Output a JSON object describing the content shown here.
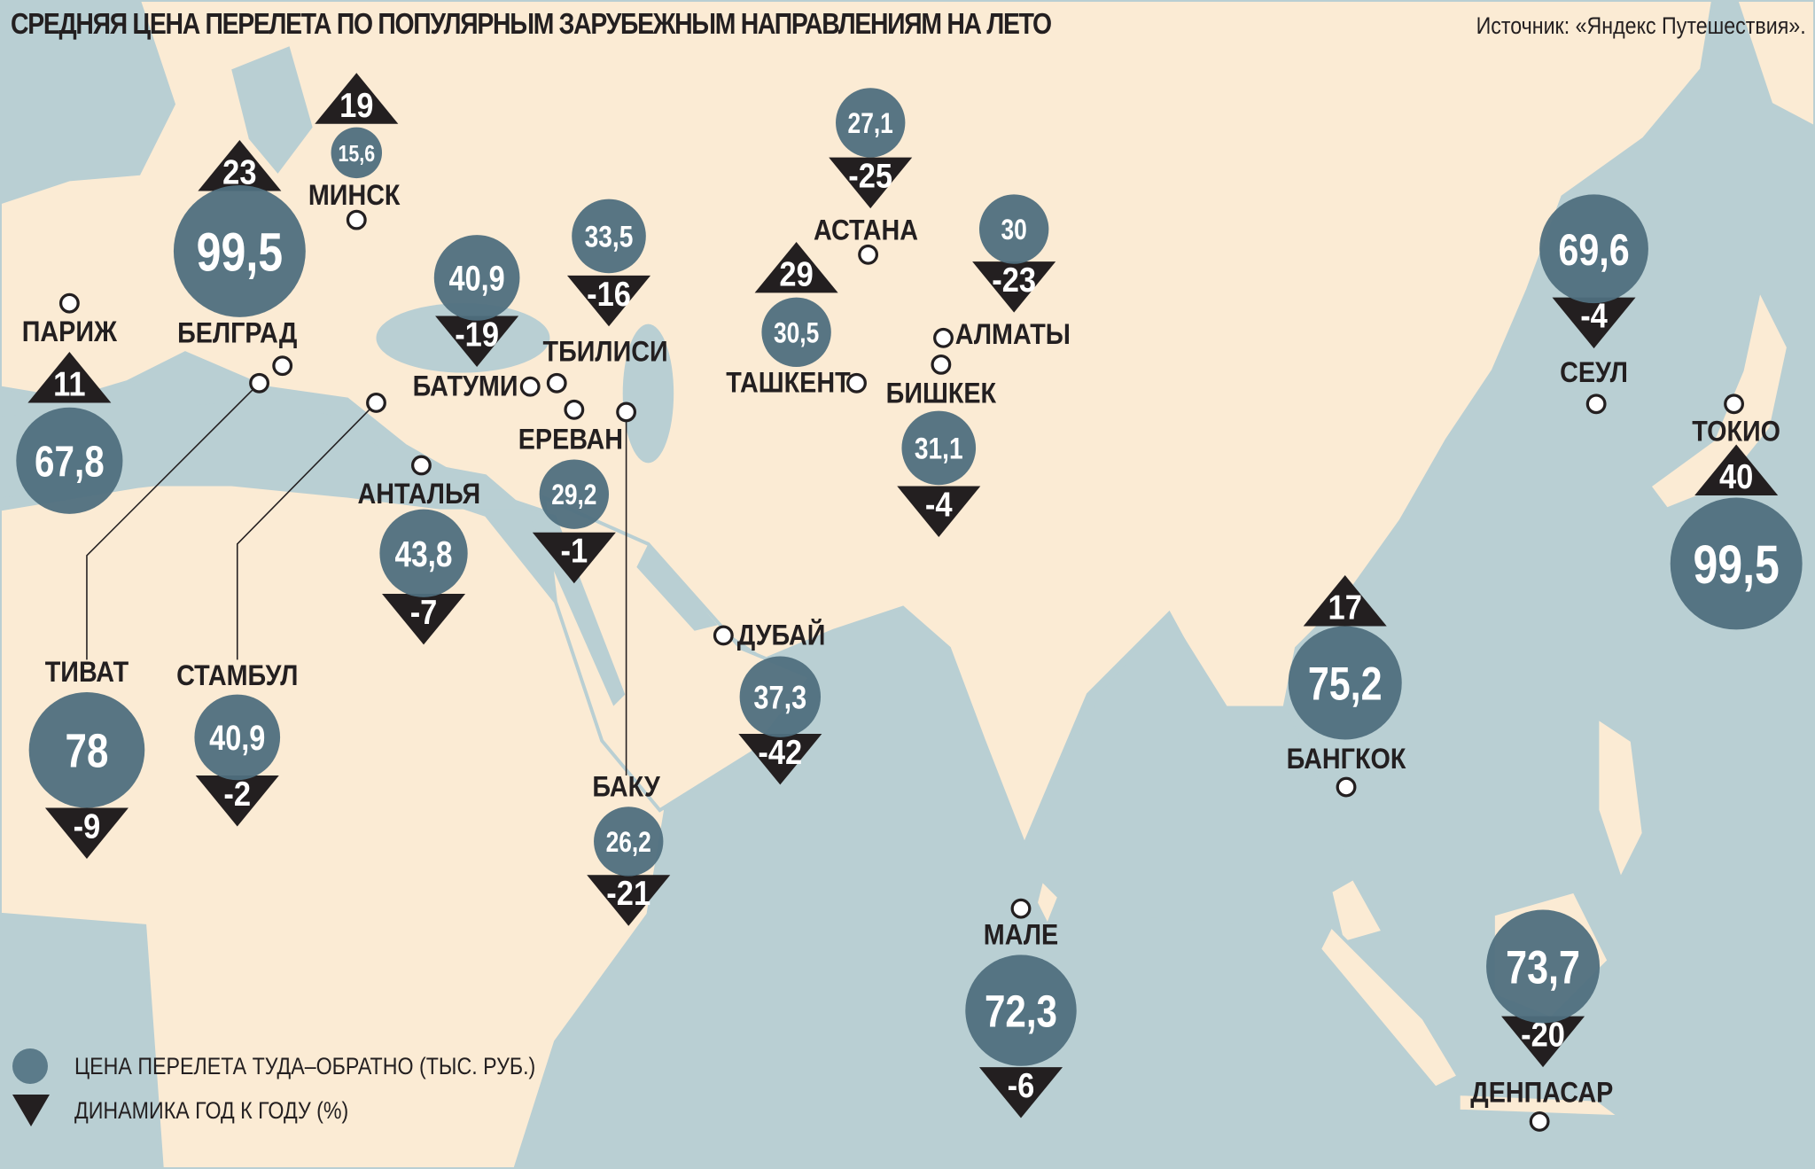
{
  "header": {
    "title": "СРЕДНЯЯ ЦЕНА ПЕРЕЛЕТА ПО ПОПУЛЯРНЫМ ЗАРУБЕЖНЫМ НАПРАВЛЕНИЯМ НА ЛЕТО",
    "source": "Источник: «Яндекс Путешествия»."
  },
  "legend": {
    "price": "ЦЕНА ПЕРЕЛЕТА ТУДА–ОБРАТНО  (ТЫС. РУБ.)",
    "change": "ДИНАМИКА ГОД К ГОДУ (%)"
  },
  "colors": {
    "sea": "#b9cfd3",
    "land": "#fbebd4",
    "border": "#b9cfd3",
    "bubble": "#4f6f7e",
    "triangle": "#231f20"
  },
  "cities": [
    {
      "name": "ПАРИЖ",
      "price": "67,8",
      "change": "11",
      "trend": "up"
    },
    {
      "name": "БЕЛГРАД",
      "price": "99,5",
      "change": "23",
      "trend": "up"
    },
    {
      "name": "МИНСК",
      "price": "15,6",
      "change": "19",
      "trend": "up"
    },
    {
      "name": "ТИВАТ",
      "price": "78",
      "change": "-9",
      "trend": "down"
    },
    {
      "name": "СТАМБУЛ",
      "price": "40,9",
      "change": "-2",
      "trend": "down"
    },
    {
      "name": "БАТУМИ",
      "price": "40,9",
      "change": "-19",
      "trend": "down"
    },
    {
      "name": "ТБИЛИСИ",
      "price": "33,5",
      "change": "-16",
      "trend": "down"
    },
    {
      "name": "ЕРЕВАН",
      "price": "29,2",
      "change": "-1",
      "trend": "down"
    },
    {
      "name": "БАКУ",
      "price": "26,2",
      "change": "-21",
      "trend": "down"
    },
    {
      "name": "АНТАЛЬЯ",
      "price": "43,8",
      "change": "-7",
      "trend": "down"
    },
    {
      "name": "ДУБАЙ",
      "price": "37,3",
      "change": "-42",
      "trend": "down"
    },
    {
      "name": "АСТАНА",
      "price": "27,1",
      "change": "-25",
      "trend": "down"
    },
    {
      "name": "ТАШКЕНТ",
      "price": "30,5",
      "change": "29",
      "trend": "up"
    },
    {
      "name": "АЛМАТЫ",
      "price": "30",
      "change": "-23",
      "trend": "down"
    },
    {
      "name": "БИШКЕК",
      "price": "31,1",
      "change": "-4",
      "trend": "down"
    },
    {
      "name": "СЕУЛ",
      "price": "69,6",
      "change": "-4",
      "trend": "down"
    },
    {
      "name": "ТОКИО",
      "price": "99,5",
      "change": "40",
      "trend": "up"
    },
    {
      "name": "БАНГКОК",
      "price": "75,2",
      "change": "17",
      "trend": "up"
    },
    {
      "name": "МАЛЕ",
      "price": "72,3",
      "change": "-6",
      "trend": "down"
    },
    {
      "name": "ДЕНПАСАР",
      "price": "73,7",
      "change": "-20",
      "trend": "down"
    }
  ]
}
